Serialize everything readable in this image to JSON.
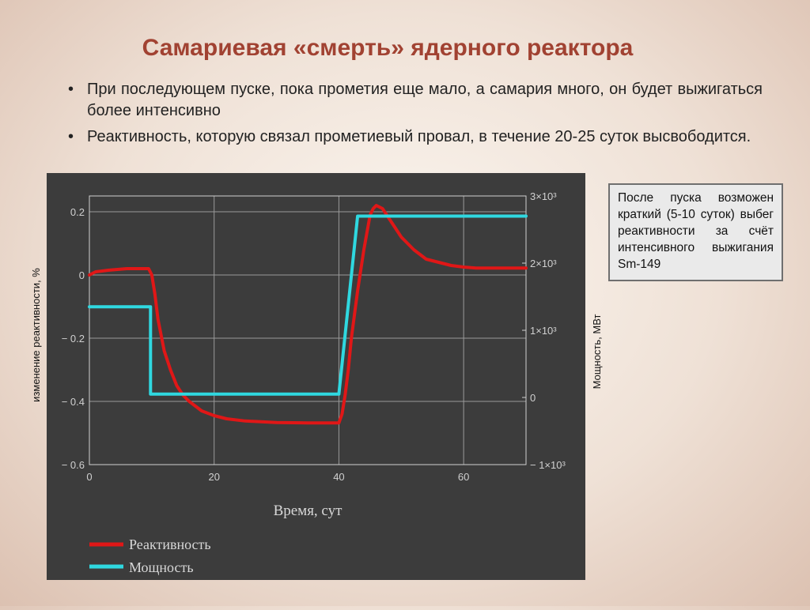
{
  "slide": {
    "title": "Самариевая «смерть» ядерного реактора",
    "bullets": [
      "При последующем пуске, пока прометия еще мало, а самария много, он будет выжигаться более интенсивно",
      "Реактивность, которую связал прометиевый провал, в течение 20-25 суток высвободится."
    ],
    "bullet_symbol": "•",
    "callout": "После пуска возможен краткий (5-10 суток) выбег реактивности за счёт интенсивного выжигания Sm-149"
  },
  "colors": {
    "chart_bg": "#3c3c3c",
    "grid": "#9a9a9a",
    "reactivity": "#e01717",
    "power": "#2fd8e0",
    "title": "#a14232"
  },
  "chart_data": {
    "type": "line",
    "xlabel": "Время, сут",
    "ylabel": "изменение реактивности, %",
    "y2label": "Мощность, МВт",
    "xlim": [
      0,
      70
    ],
    "ylim": [
      -0.6,
      0.25
    ],
    "y2lim": [
      -1000,
      3000
    ],
    "x_ticks": [
      "0",
      "20",
      "40",
      "60"
    ],
    "x_tick_values": [
      0,
      20,
      40,
      60
    ],
    "y_ticks": [
      "0.2",
      "0",
      "− 0.2",
      "− 0.4",
      "− 0.6"
    ],
    "y_tick_values": [
      0.2,
      0,
      -0.2,
      -0.4,
      -0.6
    ],
    "y2_ticks": [
      "3×10³",
      "2×10³",
      "1×10³",
      "0",
      "− 1×10³"
    ],
    "y2_tick_values": [
      3000,
      2000,
      1000,
      0,
      -1000
    ],
    "grid": true,
    "legend_position": "bottom-left",
    "series": [
      {
        "name": "Реактивность",
        "axis": "left",
        "color": "#e01717",
        "x": [
          0,
          1,
          3,
          6,
          9.5,
          10,
          10.5,
          11,
          12,
          13,
          14,
          15,
          16,
          17,
          18,
          20,
          22,
          25,
          30,
          35,
          40,
          40.5,
          41,
          41.5,
          42,
          43,
          44,
          45,
          45.5,
          46,
          47,
          48,
          49,
          50,
          52,
          54,
          56,
          58,
          60,
          62,
          65,
          70
        ],
        "y": [
          0.0,
          0.01,
          0.015,
          0.02,
          0.02,
          0.0,
          -0.06,
          -0.14,
          -0.24,
          -0.3,
          -0.35,
          -0.38,
          -0.4,
          -0.415,
          -0.43,
          -0.445,
          -0.455,
          -0.462,
          -0.467,
          -0.468,
          -0.468,
          -0.44,
          -0.38,
          -0.3,
          -0.2,
          -0.05,
          0.08,
          0.19,
          0.21,
          0.22,
          0.21,
          0.18,
          0.15,
          0.12,
          0.08,
          0.05,
          0.04,
          0.03,
          0.025,
          0.022,
          0.022,
          0.022
        ]
      },
      {
        "name": "Мощность",
        "axis": "right",
        "color": "#2fd8e0",
        "x": [
          0,
          9.8,
          9.8,
          40,
          43,
          70
        ],
        "y": [
          1350,
          1350,
          50,
          50,
          2700,
          2700
        ]
      }
    ]
  }
}
